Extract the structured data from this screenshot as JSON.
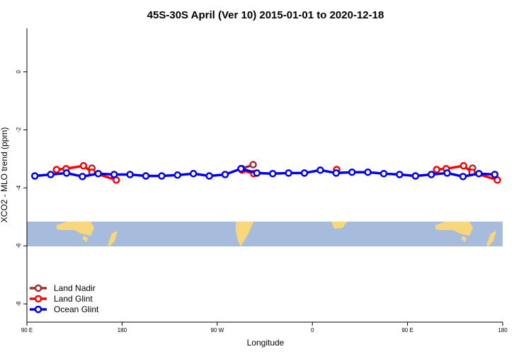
{
  "chart_data": {
    "type": "line",
    "title": "45S-30S April (Ver 10)   2015-01-01 to 2020-12-18",
    "x_label": "Longitude",
    "y_label": "XCO2 - MLO trend (ppm)",
    "xlim": [
      90,
      540
    ],
    "ylim": [
      1.5,
      -8.63
    ],
    "xticks": [
      {
        "value": 90,
        "label": "90 E"
      },
      180,
      {
        "value": 270,
        "label": "90 W"
      },
      {
        "value": 360,
        "label": "0"
      },
      {
        "value": 450,
        "label": "90 E"
      },
      {
        "value": 540,
        "label": "180"
      }
    ],
    "yticks": [
      0,
      -2,
      -4,
      -6,
      -8
    ],
    "legend": "bottom-left",
    "series": [
      {
        "name": "Land Nadir",
        "color": "#993333",
        "x": [
          151.5,
          null,
          293.5,
          304,
          null,
          511.5
        ],
        "values": [
          -3.32,
          null,
          -3.34,
          -3.2,
          null,
          -3.32
        ]
      },
      {
        "name": "Land Glint",
        "color": "#ff0000",
        "x": [
          118,
          127,
          143.5,
          151.5,
          174.5,
          null,
          293.5,
          304.5,
          null,
          383,
          null,
          477.5,
          486.5,
          503,
          511,
          535
        ],
        "values": [
          -3.37,
          -3.34,
          -3.24,
          -3.46,
          -3.73,
          null,
          -3.39,
          -3.51,
          null,
          -3.37,
          null,
          -3.37,
          -3.34,
          -3.24,
          -3.46,
          -3.73
        ]
      },
      {
        "name": "Ocean Glint",
        "color": "#0000ee",
        "x": [
          97.5,
          112.5,
          127.5,
          142.5,
          157.5,
          172.5,
          187.5,
          202.5,
          217.5,
          232.5,
          247.5,
          262.5,
          277.5,
          292.5,
          307.5,
          322.5,
          337.5,
          352.5,
          367.5,
          382.5,
          397.5,
          412.5,
          427.5,
          442.5,
          457.5,
          472.5,
          487.5,
          502.5,
          517.5,
          532.5
        ],
        "values": [
          -3.59,
          -3.54,
          -3.49,
          -3.61,
          -3.51,
          -3.54,
          -3.54,
          -3.59,
          -3.59,
          -3.56,
          -3.51,
          -3.59,
          -3.54,
          -3.34,
          -3.49,
          -3.51,
          -3.49,
          -3.49,
          -3.39,
          -3.49,
          -3.46,
          -3.46,
          -3.51,
          -3.54,
          -3.59,
          -3.54,
          -3.49,
          -3.61,
          -3.51,
          -3.54
        ]
      }
    ]
  }
}
